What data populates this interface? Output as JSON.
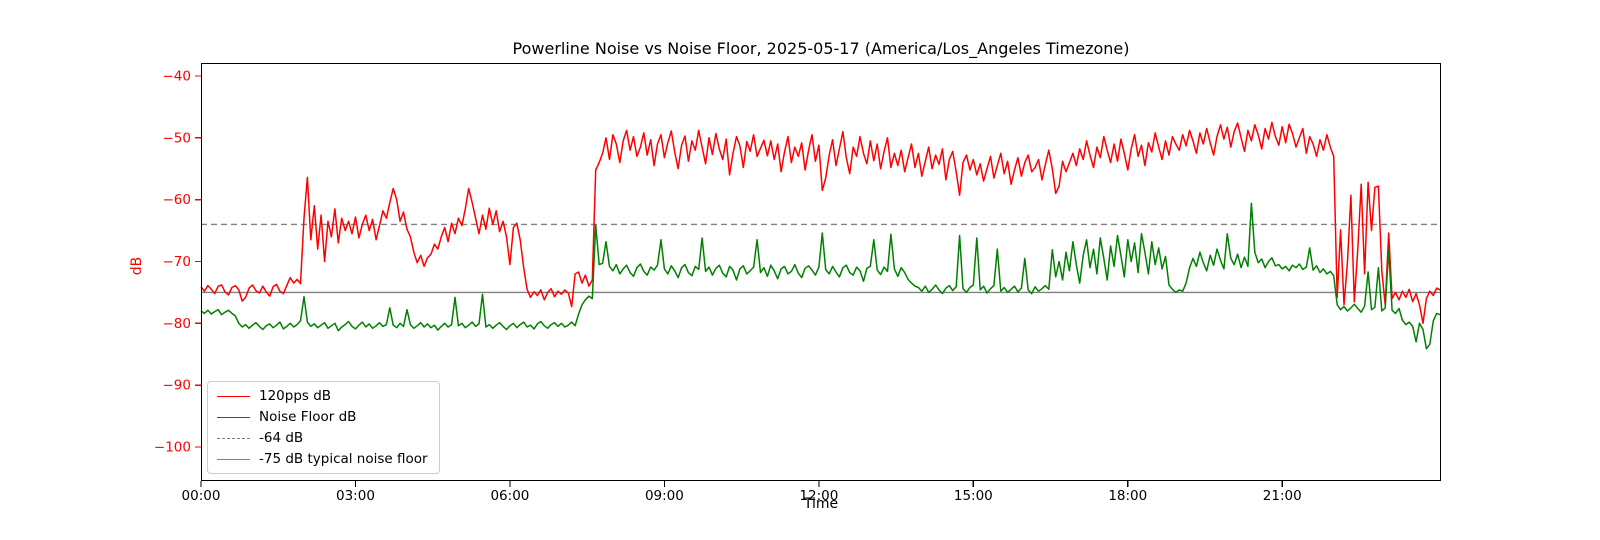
{
  "chart_data": {
    "type": "line",
    "title": "Powerline Noise vs Noise Floor, 2025-05-17 (America/Los_Angeles Timezone)",
    "xlabel": "Time",
    "ylabel": "dB",
    "grid": false,
    "legend_position": "lower-left",
    "xlim_minutes": [
      0,
      1445
    ],
    "ylim_db": [
      -105.5,
      -37.9
    ],
    "colors": {
      "series_red": "#ff0000",
      "series_green": "#008000",
      "ref_gray": "#808080",
      "spine": "#000000",
      "y_tick_label": "#ff0000",
      "x_tick_label": "#000000",
      "background": "#ffffff",
      "legend_border": "#cccccc"
    },
    "x_ticks": [
      {
        "minute": 0,
        "label": "00:00"
      },
      {
        "minute": 180,
        "label": "03:00"
      },
      {
        "minute": 360,
        "label": "06:00"
      },
      {
        "minute": 540,
        "label": "09:00"
      },
      {
        "minute": 720,
        "label": "12:00"
      },
      {
        "minute": 900,
        "label": "15:00"
      },
      {
        "minute": 1080,
        "label": "18:00"
      },
      {
        "minute": 1260,
        "label": "21:00"
      }
    ],
    "y_ticks": [
      {
        "value": -40,
        "label": "−40"
      },
      {
        "value": -50,
        "label": "−50"
      },
      {
        "value": -60,
        "label": "−60"
      },
      {
        "value": -70,
        "label": "−70"
      },
      {
        "value": -80,
        "label": "−80"
      },
      {
        "value": -90,
        "label": "−90"
      },
      {
        "value": -100,
        "label": "−100"
      }
    ],
    "ref_lines": [
      {
        "value": -64,
        "dash": "dashed",
        "color": "#808080",
        "label": "-64 dB"
      },
      {
        "value": -75,
        "dash": "solid",
        "color": "#808080",
        "label": "-75 dB typical noise floor"
      }
    ],
    "legend_items": [
      {
        "label": "120pps dB",
        "color": "#ff0000",
        "dash": "solid"
      },
      {
        "label": "Noise Floor dB",
        "color": "#008000",
        "dash": "solid"
      },
      {
        "label": "-64 dB",
        "color": "#808080",
        "dash": "dashed"
      },
      {
        "label": "-75 dB typical noise floor",
        "color": "#808080",
        "dash": "solid"
      }
    ],
    "series": [
      {
        "name": "120pps dB",
        "color": "#ff0000",
        "t0_min": 0,
        "t_step_min": 4,
        "values": [
          -74.1,
          -74.8,
          -73.9,
          -74.5,
          -75.2,
          -74.0,
          -73.8,
          -74.9,
          -75.4,
          -74.2,
          -73.9,
          -74.6,
          -76.4,
          -75.8,
          -74.3,
          -73.8,
          -74.7,
          -75.1,
          -74.0,
          -74.9,
          -75.6,
          -74.1,
          -73.7,
          -74.8,
          -75.2,
          -73.9,
          -72.6,
          -73.5,
          -72.9,
          -73.6,
          -63.0,
          -56.4,
          -66.5,
          -61.0,
          -68.0,
          -62.5,
          -70.0,
          -63.5,
          -66.0,
          -61.5,
          -67.0,
          -63.0,
          -65.0,
          -63.5,
          -65.5,
          -62.8,
          -66.2,
          -64.0,
          -62.5,
          -65.0,
          -63.2,
          -66.5,
          -64.2,
          -61.8,
          -63.0,
          -60.5,
          -58.2,
          -60.0,
          -63.5,
          -62.0,
          -64.8,
          -66.0,
          -68.5,
          -70.2,
          -69.0,
          -70.8,
          -69.4,
          -68.8,
          -67.2,
          -68.0,
          -66.0,
          -64.5,
          -66.8,
          -63.8,
          -65.5,
          -63.0,
          -64.2,
          -61.5,
          -58.2,
          -60.5,
          -63.0,
          -65.5,
          -62.5,
          -64.8,
          -61.4,
          -64.0,
          -61.8,
          -65.2,
          -63.5,
          -66.0,
          -70.5,
          -64.5,
          -63.8,
          -66.5,
          -71.0,
          -74.5,
          -75.8,
          -74.9,
          -75.5,
          -74.6,
          -76.2,
          -75.0,
          -74.4,
          -75.7,
          -74.8,
          -75.3,
          -74.6,
          -75.1,
          -77.3,
          -72.0,
          -71.7,
          -73.5,
          -72.2,
          -74.0,
          -73.0,
          -55.2,
          -54.0,
          -52.5,
          -50.0,
          -53.5,
          -49.5,
          -51.0,
          -54.0,
          -50.5,
          -48.8,
          -52.0,
          -49.8,
          -53.0,
          -51.5,
          -49.2,
          -52.8,
          -50.3,
          -54.5,
          -51.0,
          -49.5,
          -53.2,
          -50.8,
          -48.9,
          -52.3,
          -55.0,
          -51.2,
          -49.7,
          -53.8,
          -50.5,
          -52.0,
          -48.8,
          -51.5,
          -54.2,
          -50.0,
          -52.7,
          -49.3,
          -51.8,
          -53.5,
          -50.2,
          -56.0,
          -52.5,
          -49.8,
          -51.3,
          -54.8,
          -50.6,
          -52.2,
          -49.5,
          -53.0,
          -51.7,
          -50.4,
          -52.9,
          -50.5,
          -53.5,
          -51.0,
          -55.5,
          -52.3,
          -49.8,
          -54.0,
          -51.5,
          -53.0,
          -50.8,
          -55.2,
          -52.0,
          -49.5,
          -53.8,
          -51.2,
          -58.5,
          -56.5,
          -52.8,
          -50.3,
          -54.5,
          -51.8,
          -49.0,
          -53.2,
          -55.8,
          -51.5,
          -53.0,
          -49.8,
          -52.5,
          -54.2,
          -50.5,
          -53.7,
          -51.0,
          -55.0,
          -52.2,
          -50.0,
          -54.8,
          -52.5,
          -54.5,
          -52.0,
          -55.5,
          -53.2,
          -51.0,
          -54.8,
          -52.5,
          -56.2,
          -53.8,
          -51.5,
          -55.0,
          -52.8,
          -54.3,
          -51.8,
          -56.8,
          -53.5,
          -52.2,
          -55.5,
          -59.3,
          -54.0,
          -52.8,
          -55.2,
          -53.5,
          -56.0,
          -54.2,
          -57.0,
          -55.0,
          -53.0,
          -56.5,
          -54.5,
          -52.5,
          -55.8,
          -53.8,
          -57.5,
          -55.2,
          -53.2,
          -56.2,
          -54.0,
          -52.8,
          -55.5,
          -54.8,
          -53.5,
          -56.8,
          -54.3,
          -52.0,
          -55.0,
          -59.0,
          -57.8,
          -53.8,
          -55.5,
          -54.0,
          -52.5,
          -54.5,
          -51.8,
          -53.5,
          -50.5,
          -52.8,
          -54.8,
          -51.5,
          -53.2,
          -49.8,
          -52.0,
          -54.0,
          -51.0,
          -53.8,
          -50.2,
          -52.5,
          -55.2,
          -51.8,
          -49.5,
          -53.0,
          -51.2,
          -54.5,
          -50.8,
          -52.3,
          -49.2,
          -51.5,
          -53.5,
          -50.5,
          -52.8,
          -49.8,
          -51.0,
          -52.0,
          -49.5,
          -51.3,
          -48.8,
          -50.5,
          -52.5,
          -49.2,
          -51.0,
          -48.5,
          -50.8,
          -52.8,
          -49.8,
          -47.9,
          -50.2,
          -48.3,
          -51.5,
          -49.0,
          -47.6,
          -50.0,
          -52.2,
          -48.8,
          -50.5,
          -47.9,
          -49.5,
          -51.8,
          -48.5,
          -50.2,
          -47.5,
          -49.8,
          -51.2,
          -48.2,
          -50.8,
          -47.8,
          -49.3,
          -51.5,
          -50.0,
          -48.5,
          -52.5,
          -49.8,
          -51.0,
          -53.0,
          -50.3,
          -52.0,
          -49.5,
          -51.5,
          -53.0,
          -75.8,
          -64.9,
          -77.0,
          -70.0,
          -59.3,
          -76.5,
          -68.0,
          -57.5,
          -72.0,
          -57.2,
          -65.0,
          -58.0,
          -57.8,
          -71.5,
          -77.0,
          -65.4,
          -76.0,
          -75.0,
          -76.2,
          -74.8,
          -75.8,
          -74.5,
          -76.5,
          -75.2,
          -77.0,
          -80.0,
          -76.0,
          -74.8,
          -75.5,
          -74.3,
          -74.6
        ]
      },
      {
        "name": "Noise Floor dB",
        "color": "#008000",
        "t0_min": 0,
        "t_step_min": 4,
        "values": [
          -78.0,
          -78.4,
          -77.9,
          -78.5,
          -78.1,
          -77.8,
          -78.6,
          -78.2,
          -77.9,
          -78.4,
          -78.8,
          -80.0,
          -80.6,
          -80.2,
          -80.8,
          -80.3,
          -79.9,
          -80.5,
          -81.0,
          -80.4,
          -80.1,
          -80.7,
          -80.3,
          -79.8,
          -80.9,
          -80.5,
          -80.0,
          -80.6,
          -80.2,
          -79.6,
          -75.7,
          -79.8,
          -80.5,
          -80.1,
          -80.7,
          -80.3,
          -79.9,
          -80.8,
          -80.4,
          -80.0,
          -81.2,
          -80.6,
          -80.2,
          -79.7,
          -80.5,
          -80.9,
          -80.3,
          -79.8,
          -80.6,
          -80.1,
          -80.8,
          -80.4,
          -79.9,
          -80.5,
          -80.2,
          -77.5,
          -80.3,
          -80.7,
          -80.0,
          -80.5,
          -77.8,
          -80.2,
          -80.8,
          -80.4,
          -79.9,
          -80.6,
          -80.1,
          -80.7,
          -80.3,
          -81.1,
          -80.5,
          -80.0,
          -80.6,
          -80.2,
          -75.8,
          -80.4,
          -80.0,
          -80.7,
          -80.3,
          -79.8,
          -80.5,
          -80.1,
          -75.3,
          -80.6,
          -80.2,
          -80.8,
          -80.3,
          -79.9,
          -80.5,
          -81.0,
          -80.4,
          -80.0,
          -80.7,
          -80.2,
          -79.8,
          -80.6,
          -80.3,
          -80.9,
          -80.1,
          -79.7,
          -80.4,
          -80.8,
          -80.2,
          -79.9,
          -80.5,
          -80.0,
          -80.6,
          -80.3,
          -79.8,
          -80.4,
          -78.5,
          -77.0,
          -76.2,
          -75.6,
          -76.0,
          -64.1,
          -70.5,
          -70.3,
          -66.8,
          -70.8,
          -71.5,
          -70.5,
          -72.0,
          -71.2,
          -70.6,
          -71.8,
          -72.4,
          -71.0,
          -70.4,
          -71.6,
          -72.2,
          -70.9,
          -71.4,
          -70.6,
          -66.5,
          -71.2,
          -72.0,
          -70.7,
          -71.5,
          -72.6,
          -71.0,
          -70.5,
          -71.8,
          -72.3,
          -70.8,
          -71.3,
          -66.2,
          -71.6,
          -70.9,
          -72.2,
          -71.1,
          -70.6,
          -71.9,
          -72.5,
          -70.8,
          -71.4,
          -73.0,
          -71.2,
          -70.7,
          -72.0,
          -71.5,
          -70.9,
          -66.5,
          -71.8,
          -71.0,
          -72.4,
          -70.6,
          -71.5,
          -72.8,
          -71.2,
          -70.8,
          -72.0,
          -71.6,
          -70.5,
          -71.9,
          -72.6,
          -71.1,
          -70.7,
          -71.4,
          -72.2,
          -70.9,
          -65.4,
          -71.3,
          -72.0,
          -70.8,
          -71.7,
          -72.5,
          -71.0,
          -70.6,
          -71.8,
          -72.2,
          -70.9,
          -71.5,
          -73.2,
          -71.1,
          -70.8,
          -66.5,
          -71.4,
          -72.1,
          -70.9,
          -71.6,
          -65.6,
          -71.2,
          -72.4,
          -71.0,
          -71.8,
          -72.9,
          -73.5,
          -74.0,
          -74.2,
          -74.8,
          -74.0,
          -75.0,
          -74.5,
          -73.8,
          -74.6,
          -75.2,
          -74.3,
          -73.9,
          -74.7,
          -74.1,
          -65.8,
          -74.4,
          -75.0,
          -74.2,
          -73.8,
          -66.2,
          -74.6,
          -74.0,
          -75.1,
          -74.4,
          -73.9,
          -68.0,
          -74.8,
          -74.2,
          -75.0,
          -74.5,
          -74.0,
          -74.9,
          -74.3,
          -69.5,
          -74.6,
          -75.2,
          -74.1,
          -74.8,
          -74.4,
          -73.9,
          -74.5,
          -68.1,
          -72.5,
          -70.0,
          -73.0,
          -68.5,
          -71.5,
          -66.8,
          -70.5,
          -73.5,
          -69.0,
          -66.5,
          -71.0,
          -68.0,
          -72.0,
          -66.2,
          -69.5,
          -73.0,
          -67.5,
          -70.8,
          -65.8,
          -69.0,
          -72.5,
          -66.5,
          -70.0,
          -67.0,
          -71.8,
          -65.5,
          -68.5,
          -72.0,
          -66.8,
          -70.5,
          -67.8,
          -71.2,
          -69.2,
          -73.8,
          -74.5,
          -75.0,
          -74.6,
          -74.8,
          -73.5,
          -71.0,
          -69.5,
          -70.8,
          -68.5,
          -70.2,
          -71.5,
          -69.0,
          -70.6,
          -68.0,
          -69.8,
          -71.2,
          -65.5,
          -69.5,
          -70.5,
          -68.8,
          -71.0,
          -69.3,
          -70.8,
          -60.6,
          -68.5,
          -70.2,
          -69.6,
          -71.0,
          -70.0,
          -69.4,
          -70.7,
          -70.5,
          -71.2,
          -70.8,
          -71.5,
          -70.6,
          -71.0,
          -70.4,
          -71.3,
          -70.9,
          -67.8,
          -71.4,
          -70.7,
          -71.8,
          -71.2,
          -72.0,
          -71.6,
          -72.3,
          -77.0,
          -77.8,
          -77.3,
          -78.0,
          -77.5,
          -76.9,
          -77.6,
          -78.2,
          -77.2,
          -71.7,
          -77.8,
          -77.4,
          -71.0,
          -78.0,
          -77.5,
          -68.1,
          -77.9,
          -78.4,
          -77.6,
          -79.5,
          -80.2,
          -79.8,
          -80.5,
          -83.0,
          -80.0,
          -81.0,
          -84.1,
          -83.4,
          -79.6,
          -78.4,
          -78.6
        ]
      }
    ]
  }
}
